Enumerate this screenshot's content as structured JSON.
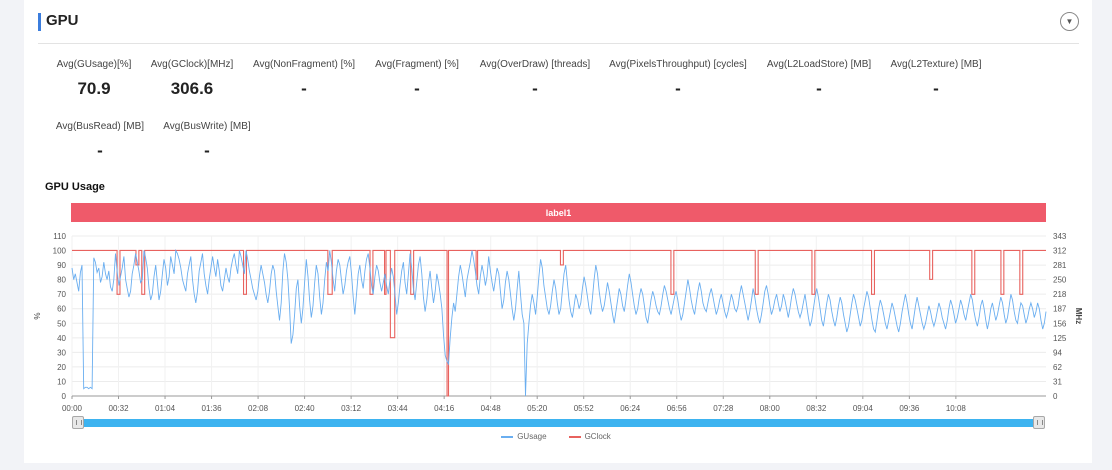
{
  "panel": {
    "title": "GPU",
    "collapse_glyph": "▼"
  },
  "metrics": [
    {
      "label": "Avg(GUsage)[%]",
      "value": "70.9"
    },
    {
      "label": "Avg(GClock)[MHz]",
      "value": "306.6"
    },
    {
      "label": "Avg(NonFragment) [%]",
      "value": "-"
    },
    {
      "label": "Avg(Fragment) [%]",
      "value": "-"
    },
    {
      "label": "Avg(OverDraw) [threads]",
      "value": "-"
    },
    {
      "label": "Avg(PixelsThroughput) [cycles]",
      "value": "-"
    },
    {
      "label": "Avg(L2LoadStore) [MB]",
      "value": "-"
    },
    {
      "label": "Avg(L2Texture) [MB]",
      "value": "-"
    },
    {
      "label": "Avg(BusRead) [MB]",
      "value": "-"
    },
    {
      "label": "Avg(BusWrite) [MB]",
      "value": "-"
    }
  ],
  "chart": {
    "title": "GPU Usage",
    "label_bar": "label1"
  },
  "chart_data": {
    "type": "line",
    "title": "GPU Usage",
    "ylabel": "%",
    "y2label": "MHz",
    "ylim": [
      0,
      110
    ],
    "y_ticks": [
      0,
      10,
      20,
      30,
      40,
      50,
      60,
      70,
      80,
      90,
      100,
      110
    ],
    "y2lim": [
      0,
      343
    ],
    "y2_ticks": [
      "0",
      "31",
      "62",
      "94",
      "125",
      "156",
      "187",
      "218",
      "250",
      "281",
      "312",
      "343"
    ],
    "x_range_seconds": [
      0,
      670
    ],
    "x_tick_labels": [
      "00:00",
      "00:32",
      "01:04",
      "01:36",
      "02:08",
      "02:40",
      "03:12",
      "03:44",
      "04:16",
      "04:48",
      "05:20",
      "05:52",
      "06:24",
      "06:56",
      "07:28",
      "08:00",
      "08:32",
      "09:04",
      "09:36",
      "10:08"
    ],
    "grid": true,
    "legend_position": "bottom-center",
    "series": [
      {
        "name": "GUsage",
        "axis": "left",
        "color": "#6aaef0",
        "values": [
          88,
          80,
          84,
          78,
          72,
          85,
          90,
          5,
          6,
          6,
          5,
          6,
          5,
          95,
          92,
          85,
          88,
          78,
          82,
          92,
          84,
          80,
          86,
          75,
          72,
          80,
          98,
          85,
          76,
          82,
          88,
          96,
          80,
          74,
          68,
          72,
          84,
          90,
          98,
          92,
          86,
          78,
          80,
          100,
          95,
          88,
          74,
          66,
          70,
          82,
          90,
          78,
          66,
          72,
          84,
          94,
          88,
          76,
          82,
          96,
          90,
          84,
          100,
          98,
          94,
          88,
          80,
          76,
          72,
          84,
          90,
          96,
          80,
          70,
          64,
          72,
          86,
          92,
          98,
          84,
          76,
          70,
          80,
          88,
          96,
          88,
          82,
          94,
          86,
          76,
          72,
          80,
          88,
          82,
          78,
          88,
          94,
          98,
          90,
          84,
          100,
          96,
          90,
          84,
          100,
          94,
          86,
          80,
          74,
          70,
          66,
          72,
          82,
          90,
          84,
          78,
          70,
          64,
          72,
          84,
          90,
          86,
          72,
          62,
          52,
          64,
          86,
          98,
          92,
          80,
          60,
          36,
          42,
          56,
          74,
          80,
          62,
          50,
          60,
          78,
          94,
          82,
          66,
          54,
          62,
          78,
          90,
          84,
          68,
          56,
          64,
          80,
          92,
          86,
          100,
          92,
          80,
          72,
          86,
          94,
          90,
          80,
          70,
          76,
          86,
          92,
          96,
          84,
          68,
          56,
          70,
          84,
          90,
          80,
          74,
          86,
          94,
          98,
          88,
          76,
          70,
          82,
          90,
          86,
          78,
          72,
          78,
          84,
          76,
          70,
          80,
          88,
          82,
          70,
          56,
          64,
          76,
          86,
          92,
          78,
          70,
          84,
          98,
          88,
          74,
          66,
          78,
          90,
          96,
          84,
          68,
          58,
          66,
          78,
          86,
          74,
          64,
          72,
          84,
          78,
          70,
          60,
          42,
          28,
          24,
          22,
          40,
          54,
          64,
          58,
          70,
          82,
          90,
          84,
          76,
          68,
          80,
          86,
          92,
          100,
          94,
          86,
          76,
          70,
          82,
          90,
          84,
          76,
          82,
          96,
          86,
          78,
          72,
          80,
          88,
          84,
          72,
          60,
          66,
          78,
          86,
          80,
          70,
          60,
          52,
          60,
          74,
          86,
          70,
          56,
          50,
          0,
          36,
          50,
          62,
          70,
          64,
          56,
          68,
          82,
          94,
          88,
          76,
          68,
          60,
          56,
          62,
          72,
          80,
          74,
          64,
          56,
          60,
          72,
          84,
          90,
          78,
          66,
          58,
          54,
          62,
          70,
          66,
          60,
          64,
          74,
          82,
          76,
          68,
          60,
          56,
          68,
          80,
          90,
          84,
          72,
          64,
          58,
          62,
          70,
          78,
          72,
          64,
          56,
          50,
          58,
          66,
          74,
          70,
          62,
          58,
          66,
          76,
          84,
          78,
          70,
          62,
          56,
          60,
          68,
          74,
          70,
          62,
          54,
          50,
          58,
          66,
          72,
          68,
          62,
          58,
          56,
          62,
          70,
          76,
          72,
          66,
          60,
          56,
          62,
          68,
          72,
          66,
          58,
          52,
          56,
          64,
          72,
          80,
          74,
          66,
          60,
          56,
          64,
          72,
          78,
          72,
          64,
          60,
          58,
          64,
          70,
          74,
          68,
          62,
          56,
          60,
          66,
          70,
          64,
          58,
          54,
          58,
          64,
          70,
          66,
          60,
          58,
          62,
          70,
          76,
          70,
          64,
          58,
          52,
          58,
          66,
          74,
          68,
          60,
          54,
          50,
          56,
          64,
          72,
          76,
          70,
          62,
          56,
          60,
          66,
          70,
          64,
          58,
          62,
          70,
          66,
          60,
          54,
          60,
          68,
          74,
          70,
          64,
          58,
          54,
          58,
          64,
          70,
          62,
          54,
          48,
          52,
          60,
          68,
          74,
          68,
          60,
          52,
          48,
          56,
          64,
          70,
          66,
          58,
          52,
          48,
          54,
          62,
          68,
          64,
          56,
          50,
          44,
          48,
          56,
          64,
          70,
          66,
          60,
          54,
          48,
          52,
          60,
          66,
          72,
          68,
          60,
          52,
          46,
          44,
          52,
          60,
          66,
          62,
          56,
          50,
          46,
          52,
          58,
          64,
          60,
          54,
          48,
          44,
          50,
          58,
          64,
          70,
          64,
          56,
          50,
          46,
          54,
          62,
          68,
          62,
          56,
          50,
          46,
          50,
          56,
          62,
          58,
          52,
          48,
          52,
          58,
          64,
          60,
          54,
          50,
          46,
          52,
          60,
          66,
          62,
          56,
          50,
          54,
          60,
          66,
          62,
          56,
          52,
          58,
          64,
          70,
          66,
          58,
          52,
          48,
          54,
          62,
          66,
          60,
          52,
          46,
          52,
          60,
          64,
          58,
          52,
          56,
          62,
          68,
          64,
          56,
          50,
          54,
          62,
          70,
          66,
          58,
          52,
          50,
          58,
          64,
          62,
          56,
          50,
          54,
          60,
          64,
          60,
          54,
          58,
          64,
          60,
          52,
          46,
          50,
          58
        ]
      },
      {
        "name": "GClock",
        "axis": "right",
        "color": "#e8625e",
        "baseline": 312,
        "dips": [
          {
            "start": 31,
            "end": 32,
            "value": 218
          },
          {
            "start": 44,
            "end": 45,
            "value": 281
          },
          {
            "start": 48,
            "end": 49,
            "value": 218
          },
          {
            "start": 118,
            "end": 119,
            "value": 218
          },
          {
            "start": 176,
            "end": 178,
            "value": 218
          },
          {
            "start": 205,
            "end": 206,
            "value": 218
          },
          {
            "start": 215,
            "end": 215,
            "value": 218
          },
          {
            "start": 219,
            "end": 221,
            "value": 125
          },
          {
            "start": 233,
            "end": 234,
            "value": 218
          },
          {
            "start": 258,
            "end": 258,
            "value": 0
          },
          {
            "start": 278,
            "end": 278,
            "value": 250
          },
          {
            "start": 336,
            "end": 337,
            "value": 281
          },
          {
            "start": 412,
            "end": 413,
            "value": 218
          },
          {
            "start": 470,
            "end": 471,
            "value": 218
          },
          {
            "start": 509,
            "end": 510,
            "value": 218
          },
          {
            "start": 550,
            "end": 551,
            "value": 218
          },
          {
            "start": 590,
            "end": 591,
            "value": 250
          },
          {
            "start": 619,
            "end": 620,
            "value": 218
          },
          {
            "start": 639,
            "end": 640,
            "value": 218
          },
          {
            "start": 652,
            "end": 653,
            "value": 218
          }
        ]
      }
    ]
  },
  "slider": {
    "start_fraction": 0.0,
    "end_fraction": 1.0
  },
  "legend": [
    {
      "name": "GUsage",
      "color": "#6aaef0"
    },
    {
      "name": "GClock",
      "color": "#e8625e"
    }
  ]
}
